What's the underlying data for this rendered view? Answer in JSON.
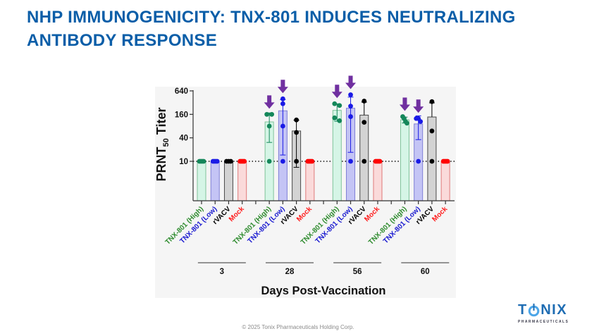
{
  "slide": {
    "title": "NHP IMMUNOGENICITY: TNX-801 INDUCES NEUTRALIZING ANTIBODY RESPONSE",
    "footer": "© 2025 Tonix Pharmaceuticals Holding Corp.",
    "logo": {
      "name_prefix": "T",
      "name_icon": "power-o-icon",
      "name_suffix": "NIX",
      "tagline": "PHARMACEUTICALS",
      "colors": {
        "text": "#1f6db3",
        "icon": "#4da6e8"
      }
    },
    "title_color": "#0b5ea8"
  },
  "chart_data": {
    "type": "bar",
    "title": "",
    "xlabel": "Days Post-Vaccination",
    "ylabel": {
      "prefix": "PRNT",
      "subscript": "50",
      "suffix": " Titer"
    },
    "yscale": "log",
    "yticks": [
      10,
      40,
      160,
      640
    ],
    "ylim": [
      1,
      640
    ],
    "grid": false,
    "legend": "none (categories labeled on x-axis)",
    "reference_line": {
      "value": 10,
      "style": "dotted"
    },
    "groups": [
      "3",
      "28",
      "56",
      "60"
    ],
    "error_bars": "mean ± SD",
    "series": [
      {
        "name": "TNX-801 (High)",
        "colors": {
          "point": "#14875a",
          "bar_fill": "#d5f5e6",
          "bar_stroke": "#7fc39a",
          "label": "#2e8b2e"
        },
        "values": [
          {
            "day": "3",
            "mean": 10,
            "sd": 0,
            "points": [
              10,
              10,
              10,
              10
            ]
          },
          {
            "day": "28",
            "mean": 102.5,
            "sd": 72,
            "points": [
              160,
              160,
              80,
              10
            ]
          },
          {
            "day": "56",
            "mean": 202.5,
            "sd": 96,
            "points": [
              300,
              270,
              130,
              110
            ]
          },
          {
            "day": "60",
            "mean": 116,
            "sd": 20,
            "points": [
              140,
              125,
              105,
              95
            ]
          }
        ]
      },
      {
        "name": "TNX-801 (Low)",
        "colors": {
          "point": "#1a1ae6",
          "bar_fill": "#c4c4f5",
          "bar_stroke": "#7f7fd6",
          "label": "#1a1ad0"
        },
        "values": [
          {
            "day": "3",
            "mean": 10,
            "sd": 0,
            "points": [
              10,
              10,
              10,
              10
            ]
          },
          {
            "day": "28",
            "mean": 197.5,
            "sd": 183,
            "points": [
              400,
              300,
              80,
              10
            ]
          },
          {
            "day": "56",
            "mean": 230,
            "sd": 213,
            "points": [
              510,
              260,
              140,
              10
            ]
          },
          {
            "day": "60",
            "mean": 91,
            "sd": 55,
            "points": [
              125,
              125,
              105,
              10
            ]
          }
        ]
      },
      {
        "name": "rVACV",
        "colors": {
          "point": "#000000",
          "bar_fill": "#d3d3d3",
          "bar_stroke": "#4a4a4a",
          "label": "#000000"
        },
        "values": [
          {
            "day": "3",
            "mean": 10,
            "sd": 0,
            "points": [
              10,
              10,
              10
            ]
          },
          {
            "day": "28",
            "mean": 60,
            "sd": 53,
            "points": [
              115,
              55,
              10
            ]
          },
          {
            "day": "56",
            "mean": 153,
            "sd": 176,
            "points": [
              350,
              100,
              10
            ]
          },
          {
            "day": "60",
            "mean": 137,
            "sd": 178,
            "points": [
              340,
              60,
              10
            ]
          }
        ]
      },
      {
        "name": "Mock",
        "colors": {
          "point": "#ff0000",
          "bar_fill": "#fadada",
          "bar_stroke": "#e07a7a",
          "label": "#ff1a1a"
        },
        "values": [
          {
            "day": "3",
            "mean": 10,
            "sd": 0,
            "points": [
              10,
              10,
              10,
              10
            ]
          },
          {
            "day": "28",
            "mean": 10,
            "sd": 0,
            "points": [
              10,
              10,
              10,
              10
            ]
          },
          {
            "day": "56",
            "mean": 10,
            "sd": 0,
            "points": [
              10,
              10,
              10,
              10
            ]
          },
          {
            "day": "60",
            "mean": 10,
            "sd": 0,
            "points": [
              10,
              10,
              10,
              10
            ]
          }
        ]
      }
    ],
    "annotations": {
      "arrow_color": "#7030a0",
      "arrows": [
        {
          "type": "arrow-down",
          "series": "TNX-801 (High)",
          "day": "28"
        },
        {
          "type": "arrow-down",
          "series": "TNX-801 (Low)",
          "day": "28"
        },
        {
          "type": "arrow-down",
          "series": "TNX-801 (High)",
          "day": "56"
        },
        {
          "type": "arrow-down",
          "series": "TNX-801 (Low)",
          "day": "56"
        },
        {
          "type": "arrow-down",
          "series": "TNX-801 (High)",
          "day": "60"
        },
        {
          "type": "arrow-down",
          "series": "TNX-801 (Low)",
          "day": "60"
        }
      ]
    }
  }
}
